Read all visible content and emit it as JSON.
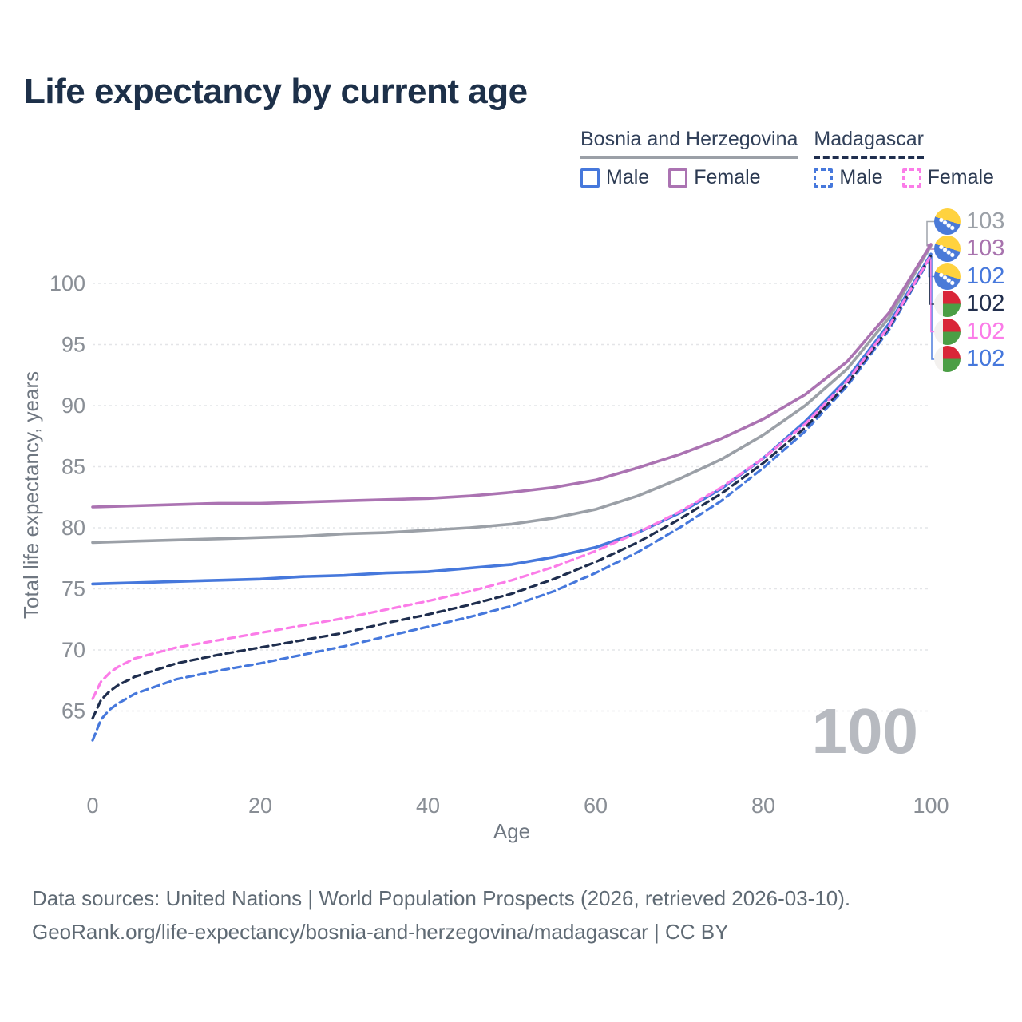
{
  "header": {
    "title": "Life expectancy by current age"
  },
  "legend": {
    "groups": [
      {
        "label": "Bosnia and Herzegovina",
        "underline_style": "solid",
        "underline_color": "#9ba0a7",
        "items": [
          {
            "label": "Male",
            "color": "#4678dc",
            "style": "solid"
          },
          {
            "label": "Female",
            "color": "#ab73b2",
            "style": "solid"
          }
        ]
      },
      {
        "label": "Madagascar",
        "underline_style": "dashed",
        "underline_color": "#1f2e4e",
        "items": [
          {
            "label": "Male",
            "color": "#4678dc",
            "style": "dashed"
          },
          {
            "label": "Female",
            "color": "#fb7ce8",
            "style": "dashed"
          }
        ]
      }
    ]
  },
  "chart_data": {
    "type": "line",
    "title": "Life expectancy by current age",
    "xlabel": "Age",
    "ylabel": "Total life expectancy, years",
    "xlim": [
      0,
      100
    ],
    "ylim": [
      62,
      104
    ],
    "xticks": [
      0,
      20,
      40,
      60,
      80,
      100
    ],
    "yticks": [
      65,
      70,
      75,
      80,
      85,
      90,
      95,
      100
    ],
    "grid": true,
    "legend_position": "top-right",
    "watermark": "100",
    "series": [
      {
        "id": "bosnia-both",
        "name": "Bosnia and Herzegovina Both sexes",
        "color": "#9ba0a7",
        "style": "solid",
        "end_row": 0,
        "end_value": 103,
        "points": [
          [
            0,
            78.8
          ],
          [
            5,
            78.9
          ],
          [
            10,
            79.0
          ],
          [
            15,
            79.1
          ],
          [
            20,
            79.2
          ],
          [
            25,
            79.3
          ],
          [
            30,
            79.5
          ],
          [
            35,
            79.6
          ],
          [
            40,
            79.8
          ],
          [
            45,
            80.0
          ],
          [
            50,
            80.3
          ],
          [
            55,
            80.8
          ],
          [
            60,
            81.5
          ],
          [
            65,
            82.6
          ],
          [
            70,
            84.0
          ],
          [
            75,
            85.6
          ],
          [
            80,
            87.6
          ],
          [
            85,
            90.0
          ],
          [
            90,
            93.0
          ],
          [
            95,
            97.2
          ],
          [
            100,
            103.1
          ]
        ]
      },
      {
        "id": "bosnia-female",
        "name": "Bosnia and Herzegovina Female",
        "color": "#ab73b2",
        "style": "solid",
        "end_row": 1,
        "end_value": 103,
        "points": [
          [
            0,
            81.7
          ],
          [
            5,
            81.8
          ],
          [
            10,
            81.9
          ],
          [
            15,
            82.0
          ],
          [
            20,
            82.0
          ],
          [
            25,
            82.1
          ],
          [
            30,
            82.2
          ],
          [
            35,
            82.3
          ],
          [
            40,
            82.4
          ],
          [
            45,
            82.6
          ],
          [
            50,
            82.9
          ],
          [
            55,
            83.3
          ],
          [
            60,
            83.9
          ],
          [
            65,
            84.9
          ],
          [
            70,
            86.0
          ],
          [
            75,
            87.3
          ],
          [
            80,
            88.9
          ],
          [
            85,
            90.9
          ],
          [
            90,
            93.6
          ],
          [
            95,
            97.6
          ],
          [
            100,
            103.2
          ]
        ]
      },
      {
        "id": "bosnia-male",
        "name": "Bosnia and Herzegovina Male",
        "color": "#4678dc",
        "style": "solid",
        "end_row": 2,
        "end_value": 102,
        "points": [
          [
            0,
            75.4
          ],
          [
            5,
            75.5
          ],
          [
            10,
            75.6
          ],
          [
            15,
            75.7
          ],
          [
            20,
            75.8
          ],
          [
            25,
            76.0
          ],
          [
            30,
            76.1
          ],
          [
            35,
            76.3
          ],
          [
            40,
            76.4
          ],
          [
            45,
            76.7
          ],
          [
            50,
            77.0
          ],
          [
            55,
            77.6
          ],
          [
            60,
            78.4
          ],
          [
            65,
            79.6
          ],
          [
            70,
            81.2
          ],
          [
            75,
            83.2
          ],
          [
            80,
            85.7
          ],
          [
            85,
            88.7
          ],
          [
            90,
            92.2
          ],
          [
            95,
            96.7
          ],
          [
            100,
            102.4
          ]
        ]
      },
      {
        "id": "madagascar-male",
        "name": "Madagascar Male",
        "color": "#4678dc",
        "style": "dashed",
        "end_row": 5,
        "end_value": 102,
        "points": [
          [
            0,
            62.6
          ],
          [
            1,
            64.3
          ],
          [
            2,
            65.1
          ],
          [
            3,
            65.6
          ],
          [
            5,
            66.4
          ],
          [
            10,
            67.6
          ],
          [
            15,
            68.3
          ],
          [
            20,
            68.9
          ],
          [
            25,
            69.6
          ],
          [
            30,
            70.3
          ],
          [
            35,
            71.1
          ],
          [
            40,
            71.9
          ],
          [
            45,
            72.7
          ],
          [
            50,
            73.6
          ],
          [
            55,
            74.8
          ],
          [
            60,
            76.3
          ],
          [
            65,
            78.0
          ],
          [
            70,
            80.0
          ],
          [
            75,
            82.2
          ],
          [
            80,
            84.9
          ],
          [
            85,
            87.9
          ],
          [
            90,
            91.6
          ],
          [
            95,
            96.2
          ],
          [
            100,
            102.2
          ]
        ]
      },
      {
        "id": "madagascar-both",
        "name": "Madagascar Both sexes",
        "color": "#1f2e4e",
        "style": "dashed",
        "end_row": 3,
        "end_value": 102,
        "points": [
          [
            0,
            64.4
          ],
          [
            1,
            65.9
          ],
          [
            2,
            66.6
          ],
          [
            3,
            67.1
          ],
          [
            5,
            67.8
          ],
          [
            10,
            68.9
          ],
          [
            15,
            69.6
          ],
          [
            20,
            70.2
          ],
          [
            25,
            70.8
          ],
          [
            30,
            71.4
          ],
          [
            35,
            72.2
          ],
          [
            40,
            72.9
          ],
          [
            45,
            73.7
          ],
          [
            50,
            74.6
          ],
          [
            55,
            75.8
          ],
          [
            60,
            77.2
          ],
          [
            65,
            78.8
          ],
          [
            70,
            80.7
          ],
          [
            75,
            82.8
          ],
          [
            80,
            85.3
          ],
          [
            85,
            88.2
          ],
          [
            90,
            91.8
          ],
          [
            95,
            96.4
          ],
          [
            100,
            102.3
          ]
        ]
      },
      {
        "id": "madagascar-female",
        "name": "Madagascar Female",
        "color": "#fb7ce8",
        "style": "dashed",
        "end_row": 4,
        "end_value": 102,
        "points": [
          [
            0,
            66.0
          ],
          [
            1,
            67.4
          ],
          [
            2,
            68.1
          ],
          [
            3,
            68.6
          ],
          [
            5,
            69.3
          ],
          [
            10,
            70.2
          ],
          [
            15,
            70.8
          ],
          [
            20,
            71.4
          ],
          [
            25,
            72.0
          ],
          [
            30,
            72.6
          ],
          [
            35,
            73.3
          ],
          [
            40,
            74.0
          ],
          [
            45,
            74.8
          ],
          [
            50,
            75.7
          ],
          [
            55,
            76.8
          ],
          [
            60,
            78.1
          ],
          [
            65,
            79.6
          ],
          [
            70,
            81.3
          ],
          [
            75,
            83.3
          ],
          [
            80,
            85.7
          ],
          [
            85,
            88.5
          ],
          [
            90,
            92.0
          ],
          [
            95,
            96.5
          ],
          [
            100,
            102.3
          ]
        ]
      }
    ]
  },
  "end_labels": [
    {
      "value": "103",
      "flag": "bosnia-flag-icon",
      "color": "#9ba0a7"
    },
    {
      "value": "103",
      "flag": "bosnia-flag-icon",
      "color": "#a873ae"
    },
    {
      "value": "102",
      "flag": "bosnia-flag-icon",
      "color": "#4678dc"
    },
    {
      "value": "102",
      "flag": "madagascar-flag-icon",
      "color": "#222f4d"
    },
    {
      "value": "102",
      "flag": "madagascar-flag-icon",
      "color": "#fb7ce8"
    },
    {
      "value": "102",
      "flag": "madagascar-flag-icon",
      "color": "#4678dc"
    }
  ],
  "footer": {
    "line1": "Data sources: United Nations | World Population Prospects (2026, retrieved 2026-03-10).",
    "line2": "GeoRank.org/life-expectancy/bosnia-and-herzegovina/madagascar | CC BY"
  }
}
